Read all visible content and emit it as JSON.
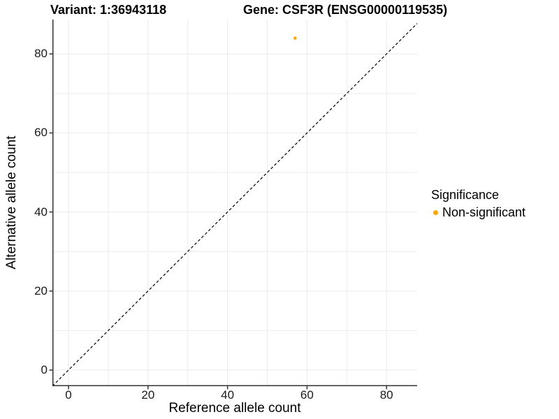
{
  "colors": {
    "background": "#ffffff",
    "point": "#FFA500",
    "grid": "#ebebeb",
    "axis": "#333333",
    "dashed_line": "#000000",
    "text": "#000000"
  },
  "chart_data": {
    "type": "scatter",
    "title": "Variant: 1:36943118    Gene: CSF3R (ENSG00000119535)",
    "titles": {
      "variant": "Variant: 1:36943118",
      "gene": "Gene: CSF3R (ENSG00000119535)"
    },
    "xlabel": "Reference allele count",
    "ylabel": "Alternative allele count",
    "xlim": [
      -4.05,
      87.7
    ],
    "ylim": [
      -4.08,
      88.7
    ],
    "xticks": [
      0,
      20,
      40,
      60,
      80
    ],
    "yticks": [
      0,
      20,
      40,
      60,
      80
    ],
    "grid_step": 10,
    "grid": true,
    "identity_line": {
      "style": "dashed",
      "equation": "y = x",
      "color": "#000000"
    },
    "series": [
      {
        "name": "Non-significant",
        "color": "#FFA500",
        "points": [
          {
            "x": 57,
            "y": 84
          }
        ]
      }
    ],
    "legend": {
      "title": "Significance",
      "position": "right",
      "items": [
        {
          "label": "Non-significant",
          "color": "#FFA500"
        }
      ]
    }
  }
}
